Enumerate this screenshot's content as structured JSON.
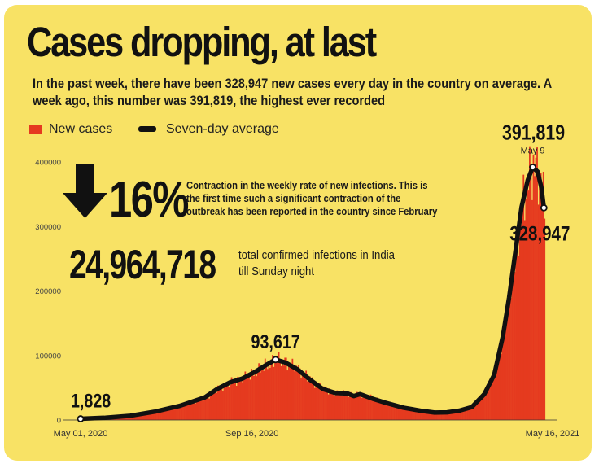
{
  "title": "Cases dropping, at last",
  "subtitle": "In the past week, there have been 328,947 new cases every day in the country on average. A week ago, this number was 391,819, the highest ever recorded",
  "colors": {
    "background": "#f8e265",
    "bars": "#e53a1f",
    "line": "#111111"
  },
  "highlight": {
    "percent": "16%",
    "arrow_icon": "down-arrow-icon",
    "percent_note": [
      "Contraction in the weekly rate of new infections. This is",
      "the first time such a significant contraction of the",
      "outbreak has been reported in the country since February"
    ],
    "total": "24,964,718",
    "total_note": [
      "total confirmed infections in India",
      "till Sunday night"
    ]
  },
  "chart_data": {
    "type": "bar",
    "title": "Cases dropping, at last",
    "legend": [
      "New cases",
      "Seven-day average"
    ],
    "legend_position": "top-left",
    "x_tick_labels": [
      "May 01, 2020",
      "Sep 16, 2020",
      "May 16, 2021"
    ],
    "y_tick_labels": [
      "0",
      "100000",
      "200000",
      "300000",
      "400000"
    ],
    "y_ticks": [
      0,
      100000,
      200000,
      300000,
      400000
    ],
    "ylim": [
      0,
      400000
    ],
    "grid": false,
    "x_day_range": [
      0,
      380
    ],
    "seven_day_average_anchors": [
      [
        0,
        1828
      ],
      [
        20,
        3500
      ],
      [
        40,
        6500
      ],
      [
        60,
        13000
      ],
      [
        80,
        22000
      ],
      [
        100,
        35000
      ],
      [
        110,
        48000
      ],
      [
        120,
        58000
      ],
      [
        130,
        64000
      ],
      [
        140,
        74000
      ],
      [
        150,
        86000
      ],
      [
        157,
        93617
      ],
      [
        165,
        89000
      ],
      [
        175,
        78000
      ],
      [
        185,
        62000
      ],
      [
        195,
        48000
      ],
      [
        205,
        42000
      ],
      [
        215,
        41000
      ],
      [
        220,
        37000
      ],
      [
        225,
        40000
      ],
      [
        235,
        33000
      ],
      [
        245,
        27000
      ],
      [
        260,
        19000
      ],
      [
        275,
        14000
      ],
      [
        285,
        11500
      ],
      [
        295,
        11800
      ],
      [
        305,
        14500
      ],
      [
        315,
        20000
      ],
      [
        325,
        40000
      ],
      [
        333,
        70000
      ],
      [
        340,
        130000
      ],
      [
        345,
        190000
      ],
      [
        350,
        260000
      ],
      [
        355,
        330000
      ],
      [
        360,
        372000
      ],
      [
        364,
        391819
      ],
      [
        368,
        385000
      ],
      [
        371,
        360000
      ],
      [
        373,
        328947
      ]
    ],
    "annotations": [
      {
        "label": "1,828",
        "day": 0,
        "value": 1828
      },
      {
        "label": "93,617",
        "day": 157,
        "value": 93617
      },
      {
        "label": "391,819",
        "sublabel": "May 9",
        "day": 364,
        "value": 391819
      },
      {
        "label": "328,947",
        "day": 373,
        "value": 328947
      }
    ]
  }
}
